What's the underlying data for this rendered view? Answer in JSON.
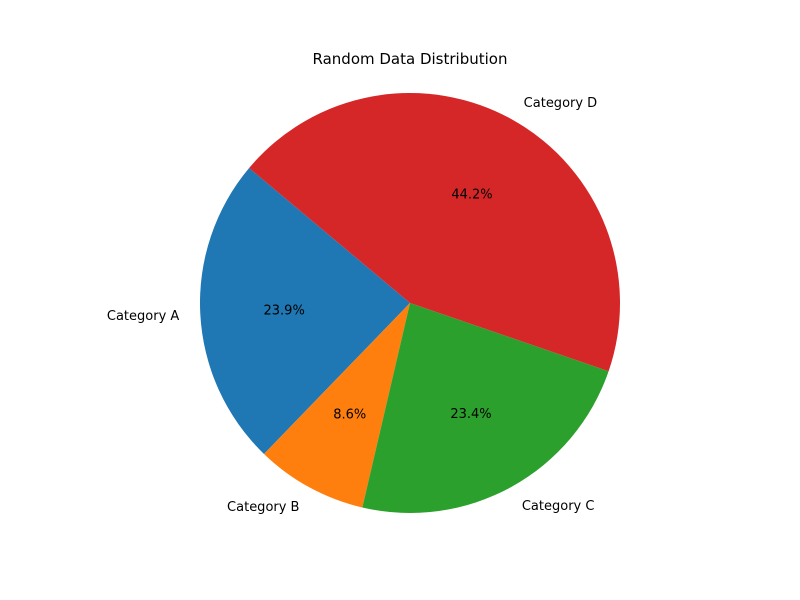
{
  "chart_data": {
    "type": "pie",
    "title": "Random Data Distribution",
    "start_angle_deg": 140,
    "direction": "counterclockwise",
    "slices": [
      {
        "label": "Category A",
        "value": 23.9,
        "pct_label": "23.9%",
        "color": "#1f77b4"
      },
      {
        "label": "Category B",
        "value": 8.6,
        "pct_label": "8.6%",
        "color": "#ff7f0e"
      },
      {
        "label": "Category C",
        "value": 23.4,
        "pct_label": "23.4%",
        "color": "#2ca02c"
      },
      {
        "label": "Category D",
        "value": 44.2,
        "pct_label": "44.2%",
        "color": "#d62728"
      }
    ]
  }
}
